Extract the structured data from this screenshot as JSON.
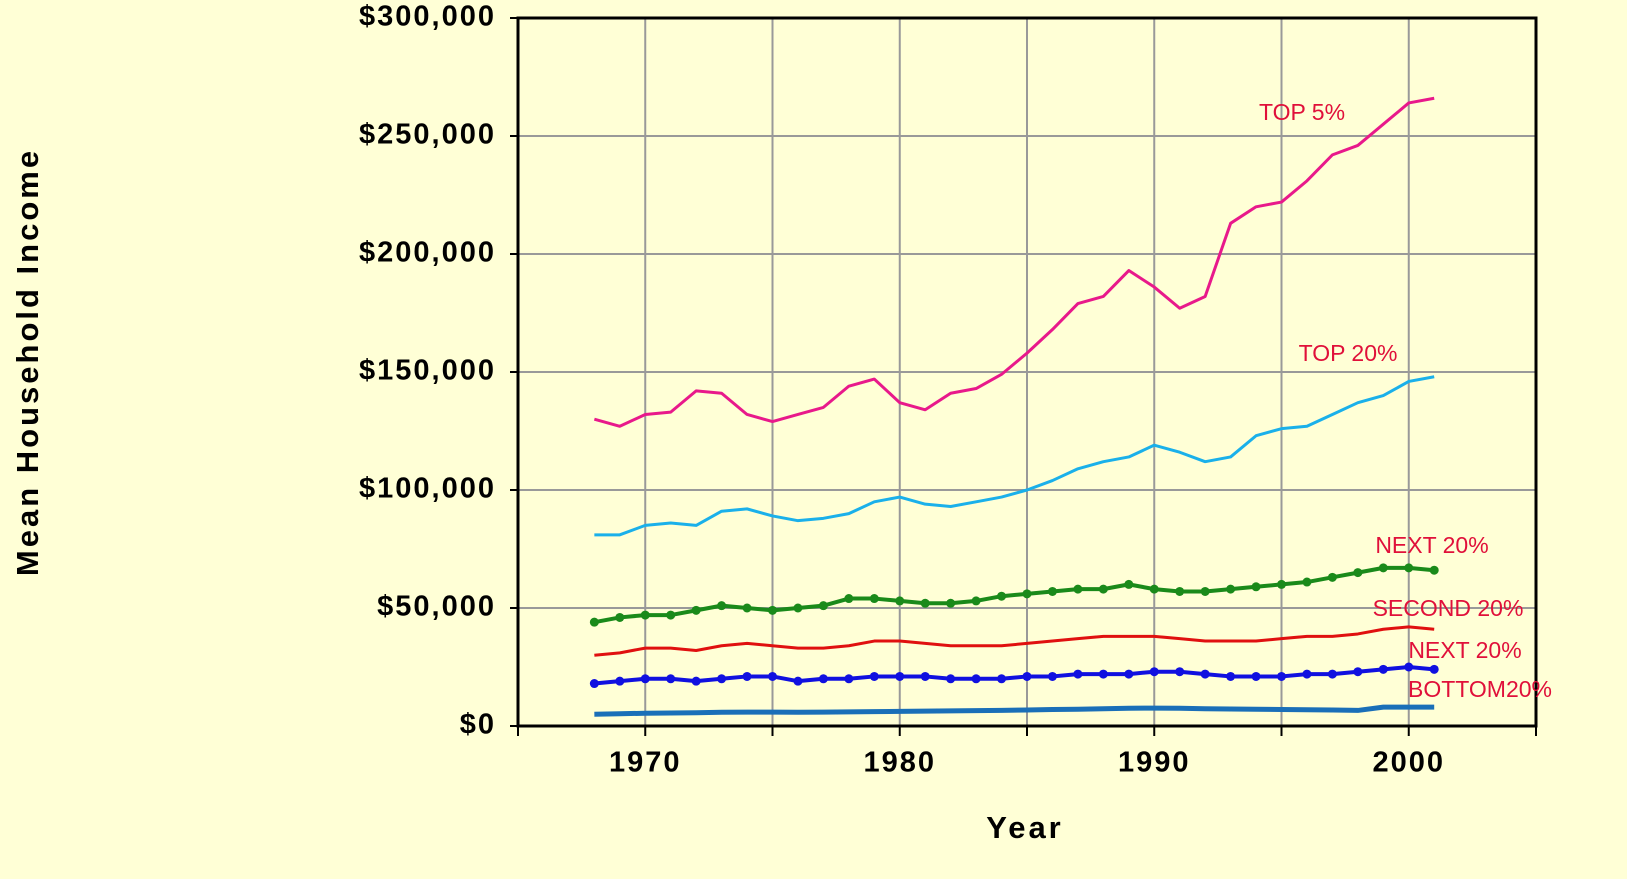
{
  "chart_data": {
    "type": "line",
    "xlabel": "Year",
    "ylabel": "Mean Household Income",
    "x": [
      1968,
      1969,
      1970,
      1971,
      1972,
      1973,
      1974,
      1975,
      1976,
      1977,
      1978,
      1979,
      1980,
      1981,
      1982,
      1983,
      1984,
      1985,
      1986,
      1987,
      1988,
      1989,
      1990,
      1991,
      1992,
      1993,
      1994,
      1995,
      1996,
      1997,
      1998,
      1999,
      2000,
      2001
    ],
    "series": [
      {
        "name": "TOP 5%",
        "color": "#e8198b",
        "markers": false,
        "values": [
          130000,
          127000,
          132000,
          133000,
          142000,
          141000,
          132000,
          129000,
          132000,
          135000,
          144000,
          147000,
          137000,
          134000,
          141000,
          143000,
          149000,
          158000,
          168000,
          179000,
          182000,
          193000,
          186000,
          177000,
          182000,
          213000,
          220000,
          222000,
          231000,
          242000,
          246000,
          255000,
          264000,
          266000
        ]
      },
      {
        "name": "TOP 20%",
        "color": "#1ab0ea",
        "markers": false,
        "values": [
          81000,
          81000,
          85000,
          86000,
          85000,
          91000,
          92000,
          89000,
          87000,
          88000,
          90000,
          95000,
          97000,
          94000,
          93000,
          95000,
          97000,
          100000,
          104000,
          109000,
          112000,
          114000,
          119000,
          116000,
          112000,
          114000,
          123000,
          126000,
          127000,
          132000,
          137000,
          140000,
          146000,
          148000
        ]
      },
      {
        "name": "NEXT 20%",
        "color": "#1a8a1a",
        "markers": true,
        "values": [
          44000,
          46000,
          47000,
          47000,
          49000,
          51000,
          50000,
          49000,
          50000,
          51000,
          54000,
          54000,
          53000,
          52000,
          52000,
          53000,
          55000,
          56000,
          57000,
          58000,
          58000,
          60000,
          58000,
          57000,
          57000,
          58000,
          59000,
          60000,
          61000,
          63000,
          65000,
          67000,
          67000,
          66000
        ]
      },
      {
        "name": "SECOND 20%",
        "color": "#e0100f",
        "markers": false,
        "values": [
          30000,
          31000,
          33000,
          33000,
          32000,
          34000,
          35000,
          34000,
          33000,
          33000,
          34000,
          36000,
          36000,
          35000,
          34000,
          34000,
          34000,
          35000,
          36000,
          37000,
          38000,
          38000,
          38000,
          37000,
          36000,
          36000,
          36000,
          37000,
          38000,
          38000,
          39000,
          41000,
          42000,
          41000
        ]
      },
      {
        "name": "NEXT 20%",
        "color": "#1010e0",
        "markers": true,
        "values": [
          18000,
          19000,
          20000,
          20000,
          19000,
          20000,
          21000,
          21000,
          19000,
          20000,
          20000,
          21000,
          21000,
          21000,
          20000,
          20000,
          20000,
          21000,
          21000,
          22000,
          22000,
          22000,
          23000,
          23000,
          22000,
          21000,
          21000,
          21000,
          22000,
          22000,
          23000,
          24000,
          25000,
          24000
        ]
      },
      {
        "name": "BOTTOM20%",
        "color": "#1a6fb8",
        "markers": false,
        "values": [
          5000,
          5200,
          5400,
          5500,
          5600,
          5800,
          5900,
          5900,
          5800,
          5900,
          6000,
          6100,
          6200,
          6300,
          6400,
          6500,
          6600,
          6800,
          7000,
          7100,
          7300,
          7500,
          7600,
          7500,
          7300,
          7200,
          7100,
          7000,
          6900,
          6800,
          6600,
          8000,
          8000,
          8000
        ]
      }
    ],
    "xlim": [
      1965,
      2005
    ],
    "xticks": [
      1970,
      1980,
      1990,
      2000
    ],
    "x_minor_ticks": [
      1965,
      1975,
      1985,
      1995,
      2005
    ],
    "ylim": [
      0,
      300000
    ],
    "yticks": [
      {
        "value": 0,
        "label": "$0"
      },
      {
        "value": 50000,
        "label": "$50,000"
      },
      {
        "value": 100000,
        "label": "$100,000"
      },
      {
        "value": 150000,
        "label": "$150,000"
      },
      {
        "value": 200000,
        "label": "$200,000"
      },
      {
        "value": 250000,
        "label": "$250,000"
      },
      {
        "value": 300000,
        "label": "$300,000"
      }
    ],
    "grid": true,
    "label_color": "#e0103a"
  }
}
